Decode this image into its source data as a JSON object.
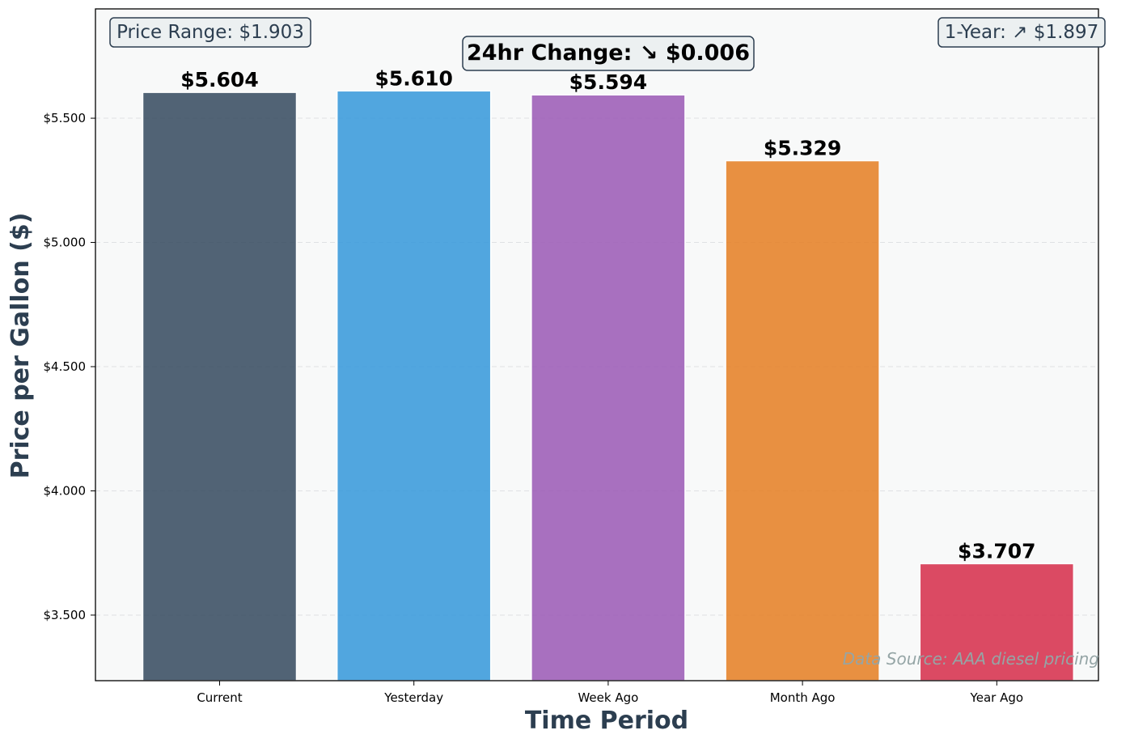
{
  "chart_data": {
    "type": "bar",
    "categories": [
      "Current",
      "Yesterday",
      "Week Ago",
      "Month Ago",
      "Year Ago"
    ],
    "values": [
      5.604,
      5.61,
      5.594,
      5.329,
      3.707
    ],
    "value_labels": [
      "$5.604",
      "$5.610",
      "$5.594",
      "$5.329",
      "$3.707"
    ],
    "colors": [
      "#34495e",
      "#3498db",
      "#9b59b6",
      "#e67e22",
      "#d62c4a"
    ],
    "xlabel": "Time Period",
    "ylabel": "Price per Gallon ($)",
    "ylim": [
      3.236,
      5.94
    ],
    "yticks": [
      3.5,
      4.0,
      4.5,
      5.0,
      5.5
    ],
    "ytick_labels": [
      "$3.500",
      "$4.000",
      "$4.500",
      "$5.000",
      "$5.500"
    ],
    "grid": true,
    "annotations": {
      "price_range": "Price Range: $1.903",
      "one_year": "1-Year: ↗ $1.897",
      "change_24hr": "24hr Change: ↘ $0.006",
      "source": "Data Source: AAA diesel pricing"
    }
  }
}
